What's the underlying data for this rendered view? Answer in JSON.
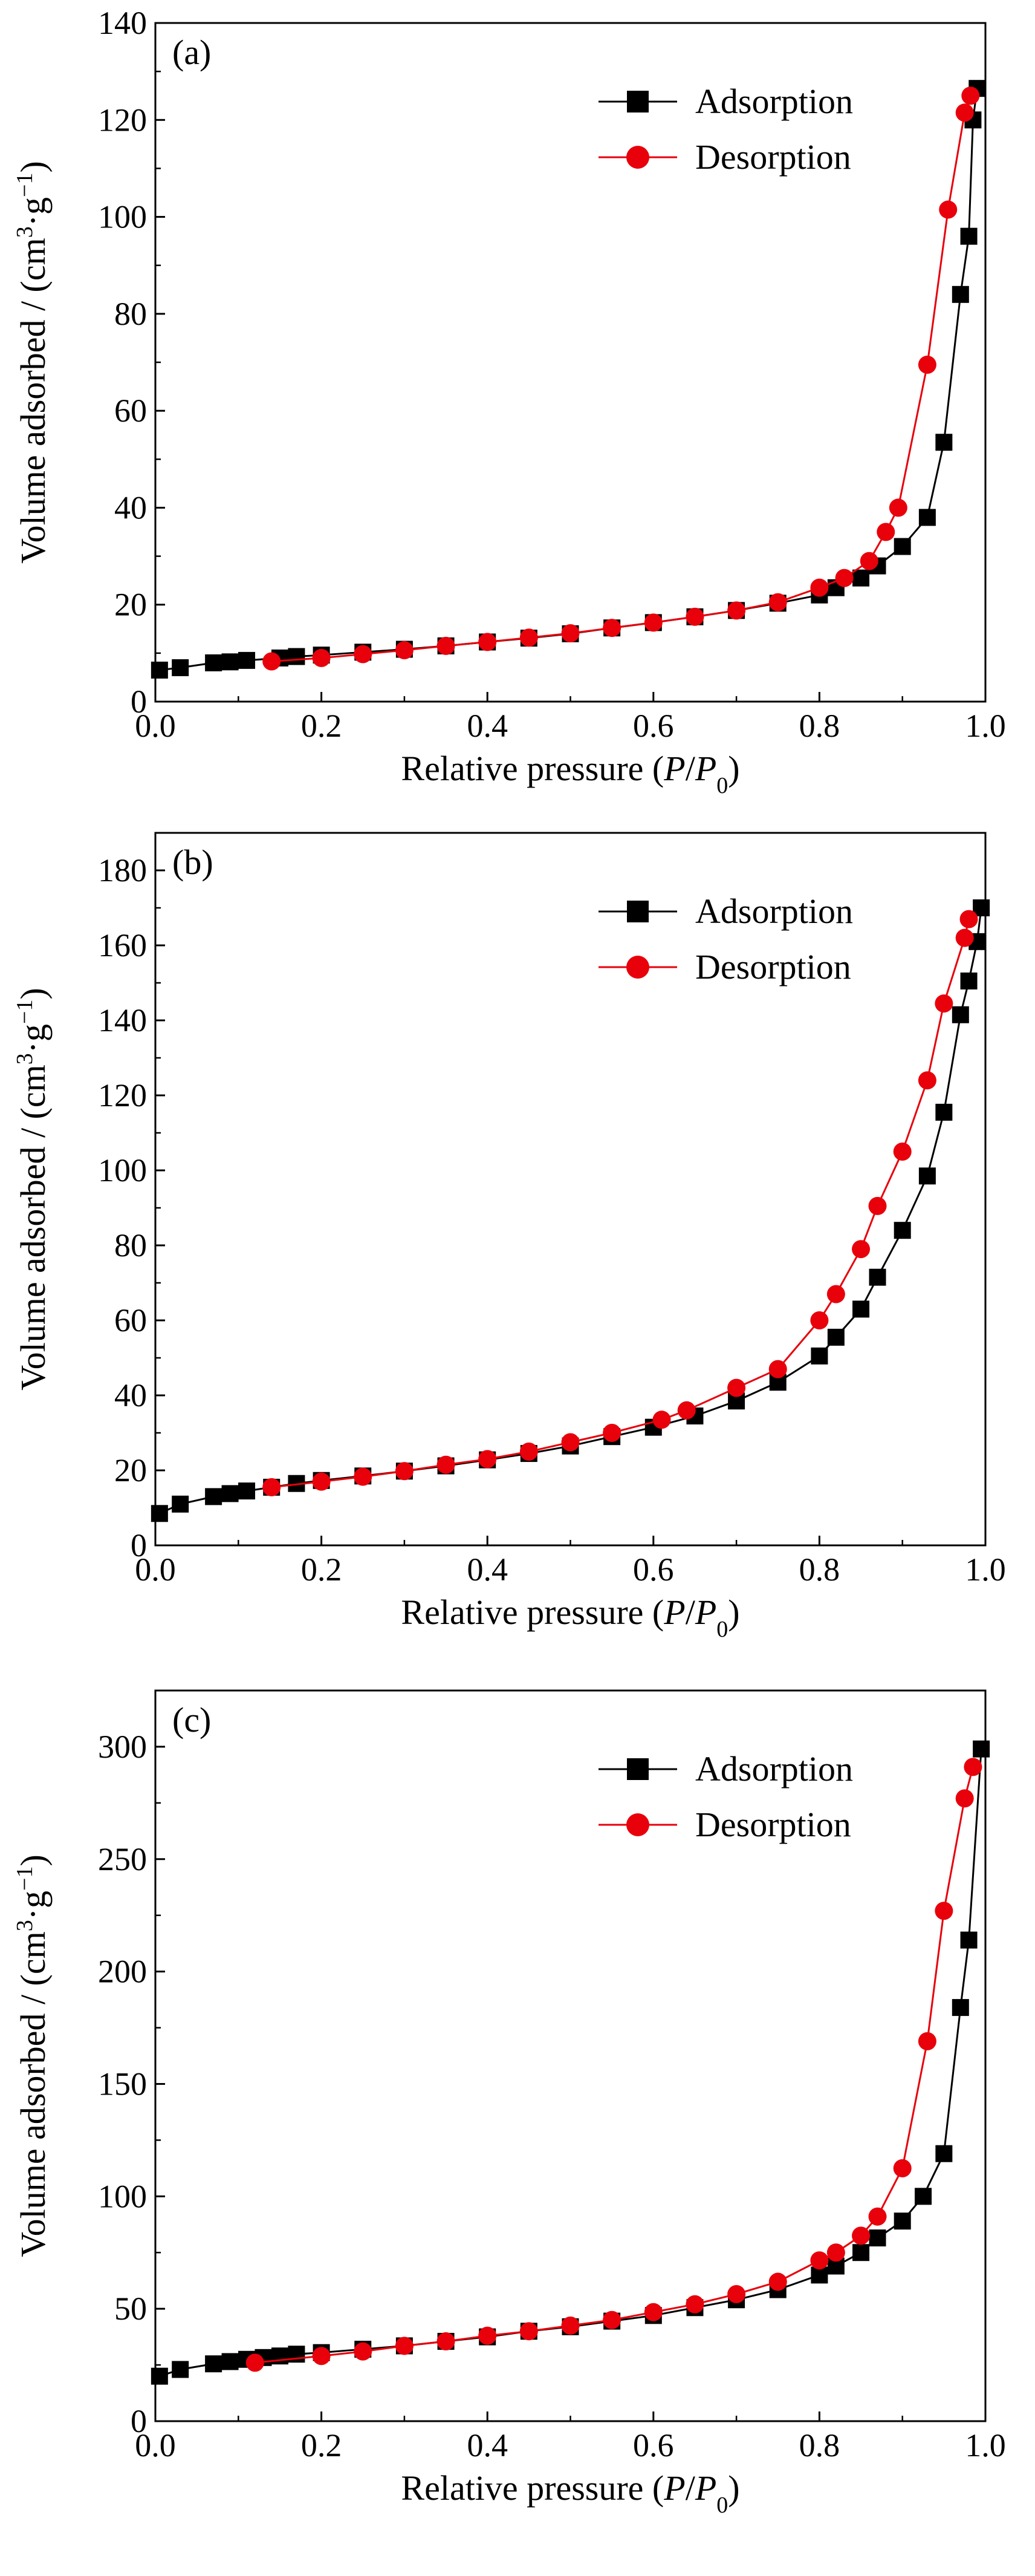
{
  "chart_data": [
    {
      "type": "line",
      "panel_label": "(a)",
      "xlabel_parts": [
        "Relative pressure (",
        "P",
        "/",
        "P",
        "0",
        ")"
      ],
      "ylabel_parts": [
        "Volume adsorbed / (cm",
        "3",
        "·g",
        "−1",
        ")"
      ],
      "xlim": [
        0.0,
        1.0
      ],
      "ylim": [
        0,
        140
      ],
      "xticks": [
        "0.0",
        "0.2",
        "0.4",
        "0.6",
        "0.8",
        "1.0"
      ],
      "yticks": [
        "0",
        "20",
        "40",
        "60",
        "80",
        "100",
        "120",
        "140"
      ],
      "grid": false,
      "legend_position": "top-right",
      "series": [
        {
          "name": "Adsorption",
          "color": "#000000",
          "marker": "square",
          "x": [
            0.005,
            0.03,
            0.07,
            0.09,
            0.11,
            0.15,
            0.17,
            0.2,
            0.25,
            0.3,
            0.35,
            0.4,
            0.45,
            0.5,
            0.55,
            0.6,
            0.65,
            0.7,
            0.75,
            0.8,
            0.82,
            0.85,
            0.87,
            0.9,
            0.93,
            0.95,
            0.97,
            0.98,
            0.985,
            0.99
          ],
          "y": [
            6.5,
            7,
            8,
            8.2,
            8.5,
            9,
            9.3,
            9.6,
            10.2,
            10.8,
            11.5,
            12.3,
            13.1,
            14,
            15.2,
            16.3,
            17.5,
            18.8,
            20.3,
            22,
            23.5,
            25.5,
            28,
            32,
            38,
            53.5,
            84,
            96,
            120,
            126.5
          ]
        },
        {
          "name": "Desorption",
          "color": "#e8000b",
          "marker": "circle",
          "x": [
            0.14,
            0.2,
            0.25,
            0.3,
            0.35,
            0.4,
            0.45,
            0.5,
            0.55,
            0.6,
            0.65,
            0.7,
            0.75,
            0.8,
            0.83,
            0.86,
            0.88,
            0.895,
            0.93,
            0.955,
            0.975,
            0.982
          ],
          "y": [
            8.3,
            9,
            9.8,
            10.6,
            11.5,
            12.3,
            13.2,
            14.1,
            15.2,
            16.3,
            17.5,
            18.8,
            20.5,
            23.5,
            25.5,
            29,
            35,
            40,
            69.5,
            101.5,
            121.5,
            125
          ]
        }
      ]
    },
    {
      "type": "line",
      "panel_label": "(b)",
      "xlabel_parts": [
        "Relative pressure (",
        "P",
        "/",
        "P",
        "0",
        ")"
      ],
      "ylabel_parts": [
        "Volume adsorbed / (cm",
        "3",
        "·g",
        "−1",
        ")"
      ],
      "xlim": [
        0.0,
        1.0
      ],
      "ylim": [
        0,
        190
      ],
      "xticks": [
        "0.0",
        "0.2",
        "0.4",
        "0.6",
        "0.8",
        "1.0"
      ],
      "yticks": [
        "0",
        "20",
        "40",
        "60",
        "80",
        "100",
        "120",
        "140",
        "160",
        "180"
      ],
      "grid": false,
      "legend_position": "top-right",
      "series": [
        {
          "name": "Adsorption",
          "color": "#000000",
          "marker": "square",
          "x": [
            0.005,
            0.03,
            0.07,
            0.09,
            0.11,
            0.14,
            0.17,
            0.2,
            0.25,
            0.3,
            0.35,
            0.4,
            0.45,
            0.5,
            0.55,
            0.6,
            0.65,
            0.7,
            0.75,
            0.8,
            0.82,
            0.85,
            0.87,
            0.9,
            0.93,
            0.95,
            0.97,
            0.98,
            0.99,
            0.995
          ],
          "y": [
            8.5,
            11,
            13,
            13.8,
            14.5,
            15.5,
            16.5,
            17.3,
            18.5,
            19.8,
            21.2,
            22.8,
            24.5,
            26.5,
            29,
            31.5,
            34.5,
            38.5,
            43.5,
            50.5,
            55.5,
            63,
            71.5,
            84,
            98.5,
            115.5,
            141.5,
            150.5,
            161,
            170
          ]
        },
        {
          "name": "Desorption",
          "color": "#e8000b",
          "marker": "circle",
          "x": [
            0.14,
            0.2,
            0.25,
            0.3,
            0.35,
            0.4,
            0.45,
            0.5,
            0.55,
            0.61,
            0.64,
            0.7,
            0.75,
            0.8,
            0.82,
            0.85,
            0.87,
            0.9,
            0.93,
            0.95,
            0.975,
            0.98
          ],
          "y": [
            15.5,
            17,
            18.3,
            19.8,
            21.5,
            23,
            25,
            27.5,
            30,
            33.5,
            36,
            42,
            47,
            60,
            67,
            79,
            90.5,
            105,
            124,
            144.5,
            162,
            167
          ]
        }
      ]
    },
    {
      "type": "line",
      "panel_label": "(c)",
      "xlabel_parts": [
        "Relative pressure (",
        "P",
        "/",
        "P",
        "0",
        ")"
      ],
      "ylabel_parts": [
        "Volume adsorbed / (cm",
        "3",
        "·g",
        "−1",
        ")"
      ],
      "xlim": [
        0.0,
        1.0
      ],
      "ylim": [
        0,
        325
      ],
      "xticks": [
        "0.0",
        "0.2",
        "0.4",
        "0.6",
        "0.8",
        "1.0"
      ],
      "yticks": [
        "0",
        "50",
        "100",
        "150",
        "200",
        "250",
        "300"
      ],
      "grid": false,
      "legend_position": "top-right",
      "series": [
        {
          "name": "Adsorption",
          "color": "#000000",
          "marker": "square",
          "x": [
            0.005,
            0.03,
            0.07,
            0.09,
            0.11,
            0.13,
            0.15,
            0.17,
            0.2,
            0.25,
            0.3,
            0.35,
            0.4,
            0.45,
            0.5,
            0.55,
            0.6,
            0.65,
            0.7,
            0.75,
            0.8,
            0.82,
            0.85,
            0.87,
            0.9,
            0.925,
            0.95,
            0.97,
            0.98,
            0.995
          ],
          "y": [
            20,
            23,
            25.5,
            26.5,
            27.5,
            28.3,
            29,
            29.8,
            30.5,
            32,
            33.5,
            35.5,
            37.5,
            40,
            42,
            44.5,
            47,
            50.5,
            54,
            58.5,
            65,
            69,
            75,
            81.5,
            89,
            100,
            119,
            184,
            214,
            299
          ]
        },
        {
          "name": "Desorption",
          "color": "#e8000b",
          "marker": "circle",
          "x": [
            0.12,
            0.2,
            0.25,
            0.3,
            0.35,
            0.4,
            0.45,
            0.5,
            0.55,
            0.6,
            0.65,
            0.7,
            0.75,
            0.8,
            0.82,
            0.85,
            0.87,
            0.9,
            0.93,
            0.95,
            0.975,
            0.985
          ],
          "y": [
            26,
            29,
            31,
            33.5,
            35.5,
            38,
            40,
            42.5,
            45,
            48.5,
            52,
            56.5,
            62,
            71.5,
            75,
            82.5,
            91,
            112.5,
            169,
            227,
            277,
            291
          ]
        }
      ]
    }
  ]
}
